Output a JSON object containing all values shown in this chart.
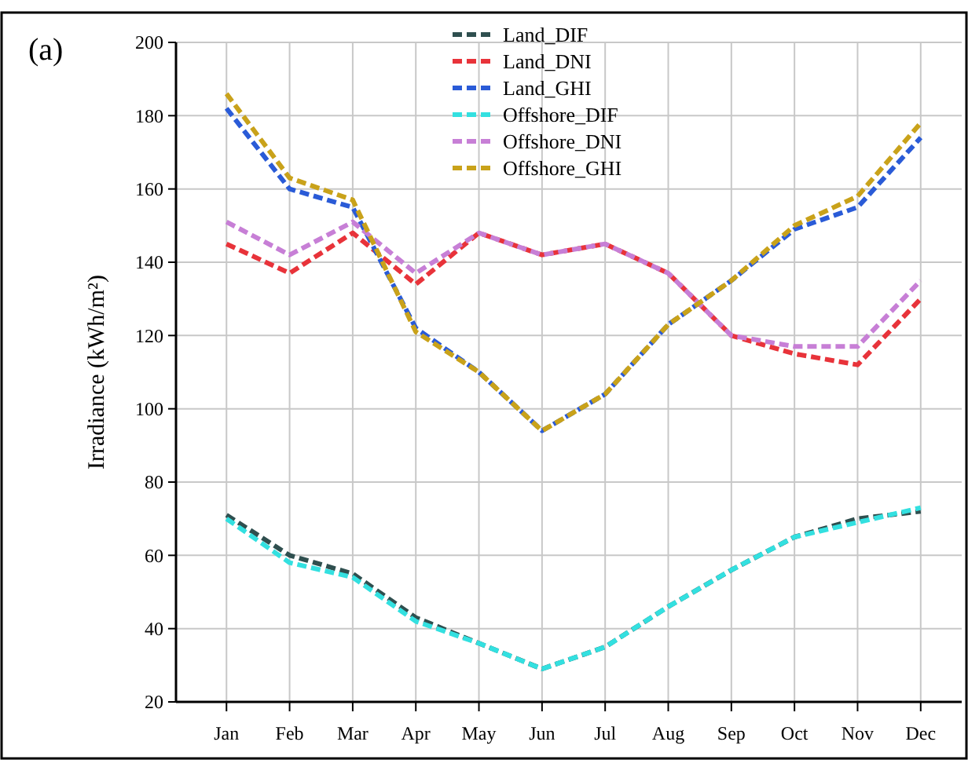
{
  "chart_data": {
    "type": "line",
    "ylabel": "Irradiance (kWh/m²)",
    "annotations": [
      "(a)"
    ],
    "categories": [
      "Jan",
      "Feb",
      "Mar",
      "Apr",
      "May",
      "Jun",
      "Jul",
      "Aug",
      "Sep",
      "Oct",
      "Nov",
      "Dec"
    ],
    "ylim": [
      20,
      200
    ],
    "yticks": [
      20,
      40,
      60,
      80,
      100,
      120,
      140,
      160,
      180,
      200
    ],
    "grid": true,
    "legend": "top",
    "line_style": "dashed",
    "marker": "none",
    "series": [
      {
        "name": "Land_DIF",
        "color": "#2f4f4f",
        "values": [
          71,
          60,
          55,
          43,
          36,
          29,
          35,
          46,
          56,
          65,
          70,
          72
        ]
      },
      {
        "name": "Land_DNI",
        "color": "#e8333a",
        "values": [
          145,
          137,
          148,
          134,
          148,
          142,
          145,
          137,
          120,
          115,
          112,
          130
        ]
      },
      {
        "name": "Land_GHI",
        "color": "#2a5bd7",
        "values": [
          182,
          160,
          155,
          122,
          110,
          94,
          104,
          123,
          135,
          149,
          155,
          174
        ]
      },
      {
        "name": "Offshore_DIF",
        "color": "#33e0e0",
        "values": [
          70,
          58,
          54,
          42,
          36,
          29,
          35,
          46,
          56,
          65,
          69,
          73
        ]
      },
      {
        "name": "Offshore_DNI",
        "color": "#c77fd6",
        "values": [
          151,
          142,
          151,
          137,
          148,
          142,
          145,
          137,
          120,
          117,
          117,
          135
        ]
      },
      {
        "name": "Offshore_GHI",
        "color": "#c9a21a",
        "values": [
          186,
          163,
          157,
          121,
          110,
          94,
          104,
          123,
          135,
          150,
          158,
          178
        ]
      }
    ]
  }
}
